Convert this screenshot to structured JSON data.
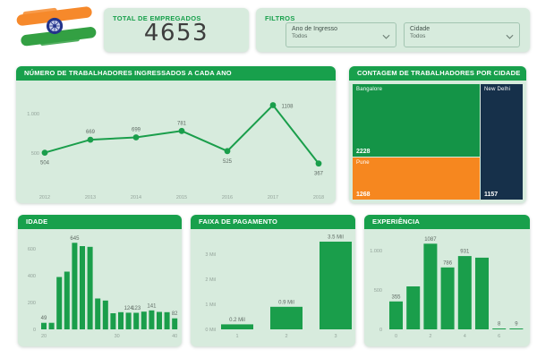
{
  "colors": {
    "accent_green": "#18A04C",
    "card_bg": "#D7EBDD",
    "bar_green": "#1A9E4B",
    "big_number_text": "#3D3D3D",
    "data_label_gray": "#5F6B64",
    "axis_label_gray": "#93A39A",
    "flag_saffron": "#F6892B",
    "flag_green": "#33A043",
    "flag_chakra_navy": "#24348C"
  },
  "header": {
    "total_label": "TOTAL DE EMPREGADOS",
    "total_value": "4653",
    "filters_title": "FILTROS",
    "year_filter": {
      "label": "Ano de Ingresso",
      "value": "Todos"
    },
    "city_filter": {
      "label": "Cidade",
      "value": "Todos"
    }
  },
  "chart_data": [
    {
      "id": "hired-per-year",
      "type": "line",
      "title": "NÚMERO DE TRABALHADORES INGRESSADOS A CADA ANO",
      "x": [
        "2012",
        "2013",
        "2014",
        "2015",
        "2016",
        "2017",
        "2018"
      ],
      "values": [
        504,
        669,
        699,
        781,
        525,
        1108,
        367
      ],
      "ylim": [
        0,
        1200
      ],
      "yticks": [
        {
          "value": 500,
          "label": "500"
        },
        {
          "value": 1000,
          "label": "1.000"
        }
      ],
      "point_label_position": [
        "below",
        "above",
        "above",
        "above",
        "below",
        "right",
        "below"
      ],
      "grid": false,
      "legend": "none"
    },
    {
      "id": "workers-by-city",
      "type": "treemap",
      "title": "CONTAGEM DE TRABALHADORES POR CIDADE",
      "items": [
        {
          "name": "Bangalore",
          "value": 2228,
          "color": "#149447"
        },
        {
          "name": "Pune",
          "value": 1268,
          "color": "#F6871F"
        },
        {
          "name": "New Delhi",
          "value": 1157,
          "color": "#16304A"
        }
      ]
    },
    {
      "id": "age",
      "type": "bar",
      "title": "IDADE",
      "values": [
        49,
        49,
        390,
        430,
        645,
        620,
        615,
        230,
        215,
        120,
        128,
        124,
        123,
        132,
        141,
        130,
        128,
        82
      ],
      "visible_bar_labels": {
        "0": "49",
        "4": "645",
        "11": "124",
        "12": "123",
        "14": "141",
        "17": "82"
      },
      "ylim": [
        0,
        700
      ],
      "yticks": [
        {
          "value": 0,
          "label": "0"
        },
        {
          "value": 200,
          "label": "200"
        },
        {
          "value": 400,
          "label": "400"
        },
        {
          "value": 600,
          "label": "600"
        }
      ],
      "xticks": [
        {
          "pos": 0,
          "label": "20"
        },
        {
          "pos": 9.5,
          "label": "30"
        },
        {
          "pos": 17,
          "label": "40"
        }
      ],
      "grid": false
    },
    {
      "id": "pay-range",
      "type": "bar",
      "title": "FAIXA DE PAGAMENTO",
      "categories": [
        "1",
        "2",
        "3"
      ],
      "values": [
        0.2,
        0.9,
        3.5
      ],
      "unit": "Mil",
      "visible_bar_labels": {
        "0": "0.2 Mil",
        "1": "0.9 Mil",
        "2": "3.5 Mil"
      },
      "ylim": [
        0,
        3.7
      ],
      "yticks": [
        {
          "value": 0,
          "label": "0 Mil"
        },
        {
          "value": 1,
          "label": "1 Mil"
        },
        {
          "value": 2,
          "label": "2 Mil"
        },
        {
          "value": 3,
          "label": "3 Mil"
        }
      ],
      "grid": false
    },
    {
      "id": "experience",
      "type": "bar",
      "title": "EXPERIÊNCIA",
      "values": [
        355,
        545,
        1087,
        786,
        931,
        910,
        8,
        9
      ],
      "visible_bar_labels": {
        "0": "355",
        "2": "1087",
        "3": "786",
        "4": "931",
        "6": "8",
        "7": "9"
      },
      "ylim": [
        0,
        1200
      ],
      "yticks": [
        {
          "value": 0,
          "label": "0"
        },
        {
          "value": 500,
          "label": "500"
        },
        {
          "value": 1000,
          "label": "1.000"
        }
      ],
      "xticks": [
        {
          "pos": 0,
          "label": "0"
        },
        {
          "pos": 2,
          "label": "2"
        },
        {
          "pos": 4,
          "label": "4"
        },
        {
          "pos": 6,
          "label": "6"
        }
      ],
      "grid": false
    }
  ]
}
